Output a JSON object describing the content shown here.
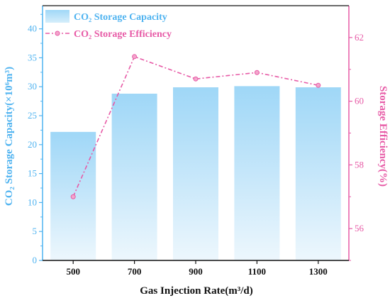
{
  "chart_data": {
    "type": "bar+line",
    "categories": [
      "500",
      "700",
      "900",
      "1100",
      "1300"
    ],
    "xlabel": "Gas Injection Rate(m³/d)",
    "series": [
      {
        "name": "CO₂ Storage Capacity",
        "type": "bar",
        "axis": "left",
        "values": [
          22.2,
          28.8,
          29.9,
          30.1,
          29.9
        ],
        "color": "#4fb3f0"
      },
      {
        "name": "CO₂ Storage Efficiency",
        "type": "line",
        "axis": "right",
        "values": [
          57.0,
          61.4,
          60.7,
          60.9,
          60.5
        ],
        "color": "#e75aa6"
      }
    ],
    "y_left": {
      "label": "CO₂ Storage Capacity(×10⁶m³)",
      "ylim": [
        0,
        44
      ],
      "ticks": [
        "0",
        "5",
        "10",
        "15",
        "20",
        "25",
        "30",
        "35",
        "40"
      ]
    },
    "y_right": {
      "label": "Storage Efficiency(%)",
      "ylim": [
        55,
        63
      ],
      "ticks": [
        "56",
        "58",
        "60",
        "62"
      ]
    },
    "legend": {
      "position": "top-left",
      "bar_label": "CO₂ Storage Capacity",
      "line_label": "CO₂ Storage Efficiency"
    },
    "grid": false
  }
}
